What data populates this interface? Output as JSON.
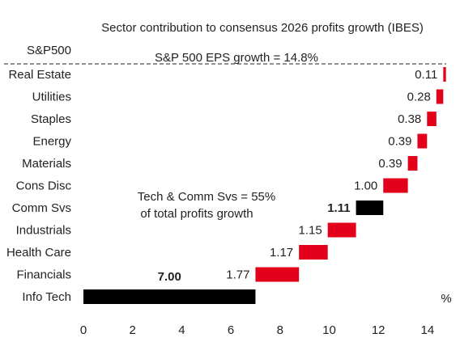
{
  "chart_data": {
    "type": "bar",
    "orientation": "horizontal-waterfall",
    "title": "Sector contribution to consensus 2026 profits growth (IBES)",
    "total": {
      "label": "S&P500",
      "annotation": "S&P 500 EPS growth = 14.8%",
      "value": 14.8
    },
    "categories": [
      "Real Estate",
      "Utilities",
      "Staples",
      "Energy",
      "Materials",
      "Cons Disc",
      "Comm Svs",
      "Industrials",
      "Health Care",
      "Financials",
      "Info Tech"
    ],
    "values": [
      0.11,
      0.28,
      0.38,
      0.39,
      0.39,
      1.0,
      1.11,
      1.15,
      1.17,
      1.77,
      7.0
    ],
    "value_labels": [
      "0.11",
      "0.28",
      "0.38",
      "0.39",
      "0.39",
      "1.00",
      "1.11",
      "1.15",
      "1.17",
      "1.77",
      "7.00"
    ],
    "highlighted": [
      "Comm Svs",
      "Info Tech"
    ],
    "colors": {
      "default": "#e3001b",
      "highlight": "#000000",
      "text": "#222222"
    },
    "annotation": [
      "Tech & Comm Svs = 55%",
      "of total profits growth"
    ],
    "xunit": "%",
    "xticks": [
      0,
      2,
      4,
      6,
      8,
      10,
      12,
      14
    ],
    "xlim": [
      0,
      15
    ],
    "xlabel": "",
    "ylabel": "",
    "grid": false
  }
}
